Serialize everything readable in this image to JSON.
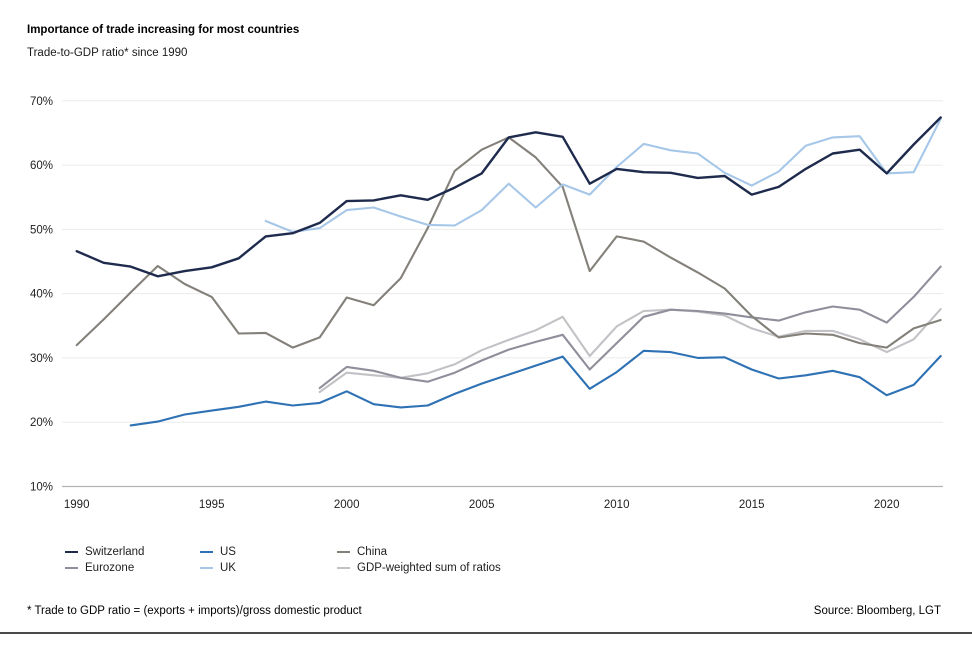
{
  "chart_data": {
    "type": "line",
    "title": "Importance of trade increasing for most countries",
    "subtitle": "Trade-to-GDP ratio* since 1990",
    "unit": "%",
    "x_range": [
      1990,
      2022
    ],
    "ylim": [
      10,
      70
    ],
    "yticks": [
      70,
      60,
      50,
      40,
      30,
      20,
      10
    ],
    "xticks": [
      1990,
      1995,
      2000,
      2005,
      2010,
      2015,
      2020
    ],
    "grid": "horizontal",
    "legend_position": "bottom",
    "series": [
      {
        "id": "gdp-weighted",
        "name": "GDP-weighted sum of ratios",
        "color": "#c2c2c6",
        "start_year": 1999,
        "values": [
          24.7,
          27.7,
          27.3,
          26.9,
          27.6,
          29.0,
          31.2,
          32.8,
          34.3,
          36.4,
          30.3,
          34.9,
          37.3,
          37.5,
          37.2,
          36.6,
          34.6,
          33.3,
          34.2,
          34.2,
          32.9,
          30.9,
          32.9,
          37.6
        ]
      },
      {
        "id": "eurozone",
        "name": "Eurozone",
        "color": "#8f8f9b",
        "start_year": 1999,
        "values": [
          25.3,
          28.6,
          28.0,
          26.9,
          26.3,
          27.7,
          29.6,
          31.3,
          32.5,
          33.6,
          28.2,
          32.3,
          36.4,
          37.5,
          37.3,
          36.9,
          36.3,
          35.8,
          37.1,
          38.0,
          37.5,
          35.5,
          39.5,
          44.2
        ]
      },
      {
        "id": "china",
        "name": "China",
        "color": "#84807a",
        "start_year": 1990,
        "values": [
          32.0,
          36.0,
          40.2,
          44.3,
          41.5,
          39.5,
          33.8,
          33.9,
          31.6,
          33.2,
          39.4,
          38.2,
          42.4,
          50.2,
          59.1,
          62.4,
          64.3,
          61.2,
          56.6,
          43.5,
          48.9,
          48.1,
          45.6,
          43.3,
          40.8,
          36.5,
          33.2,
          33.8,
          33.6,
          32.3,
          31.6,
          34.6,
          35.9
        ]
      },
      {
        "id": "us",
        "name": "US",
        "color": "#2e71b4",
        "start_year": 1992,
        "values": [
          19.5,
          20.1,
          21.2,
          21.8,
          22.4,
          23.2,
          22.6,
          23.0,
          24.8,
          22.8,
          22.3,
          22.6,
          24.4,
          26.0,
          27.4,
          28.8,
          30.2,
          25.2,
          27.8,
          31.1,
          30.9,
          30.0,
          30.1,
          28.2,
          26.8,
          27.3,
          28.0,
          27.0,
          24.2,
          25.8,
          30.3
        ]
      },
      {
        "id": "uk",
        "name": "UK",
        "color": "#a6c7e8",
        "start_year": 1997,
        "values": [
          51.3,
          49.6,
          50.2,
          53.0,
          53.4,
          52.0,
          50.7,
          50.6,
          53.0,
          57.1,
          53.4,
          57.0,
          55.4,
          59.7,
          63.3,
          62.3,
          61.8,
          58.8,
          56.8,
          59.0,
          63.0,
          64.3,
          64.5,
          58.7,
          58.9,
          67.2
        ]
      },
      {
        "id": "switzerland",
        "name": "Switzerland",
        "color": "#1e2b4d",
        "start_year": 1990,
        "values": [
          46.6,
          44.8,
          44.2,
          42.7,
          43.5,
          44.1,
          45.5,
          48.9,
          49.4,
          51.0,
          54.4,
          54.5,
          55.3,
          54.6,
          56.5,
          58.7,
          64.3,
          65.1,
          64.4,
          57.1,
          59.4,
          58.9,
          58.8,
          58.0,
          58.3,
          55.4,
          56.6,
          59.4,
          61.8,
          62.4,
          58.7,
          63.2,
          67.4
        ]
      }
    ]
  },
  "legend": {
    "columns": [
      [
        {
          "id": "switzerland",
          "label": "Switzerland",
          "color": "#1e2b4d"
        },
        {
          "id": "eurozone",
          "label": "Eurozone",
          "color": "#8f8f9b"
        }
      ],
      [
        {
          "id": "us",
          "label": "US",
          "color": "#2e71b4"
        },
        {
          "id": "uk",
          "label": "UK",
          "color": "#a6c7e8"
        }
      ],
      [
        {
          "id": "china",
          "label": "China",
          "color": "#84807a"
        },
        {
          "id": "gdp-weighted",
          "label": "GDP-weighted sum of ratios",
          "color": "#c2c2c6"
        }
      ]
    ]
  },
  "footer": {
    "footnote": "* Trade to GDP ratio = (exports + imports)/gross domestic product",
    "source": "Source: Bloomberg, LGT"
  }
}
